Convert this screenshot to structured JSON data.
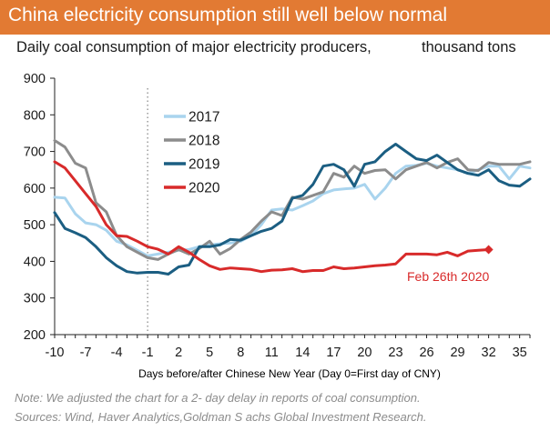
{
  "header": {
    "title": "China electricity consumption still well below normal",
    "subtitle": "Daily coal consumption of major electricity producers,",
    "units": "thousand tons"
  },
  "footer": {
    "note": "Note:  We adjusted the chart for a 2- day delay in reports of coal consumption.",
    "source": "Sources: Wind,  Haver Analytics,Goldman S achs Global Investment Research."
  },
  "colors": {
    "title_bar": "#e27a33",
    "s2017": "#a9d4ee",
    "s2018": "#8c8c8c",
    "s2019": "#1b5e82",
    "s2020": "#d82a2a",
    "cny_line": "#8c8c8c"
  },
  "chart_data": {
    "type": "line",
    "xlabel": "Days before/after Chinese New Year (Day 0=First day of CNY)",
    "ylabel": "",
    "xlim": [
      -10,
      36
    ],
    "ylim": [
      200,
      900
    ],
    "x_ticks": [
      -10,
      -7,
      -4,
      -1,
      2,
      5,
      8,
      11,
      14,
      17,
      20,
      23,
      26,
      29,
      32,
      35
    ],
    "y_ticks": [
      200,
      300,
      400,
      500,
      600,
      700,
      800,
      900
    ],
    "reference_line": {
      "x": -1,
      "style": "dotted"
    },
    "legend_position": "center",
    "annotation": {
      "text": "Feb 26th 2020",
      "x": 32,
      "y": 433
    },
    "series": [
      {
        "name": "2017",
        "color_key": "s2017",
        "x": [
          -10,
          -9,
          -8,
          -7,
          -6,
          -5,
          -4,
          -3,
          -2,
          -1,
          0,
          1,
          2,
          3,
          4,
          5,
          6,
          7,
          8,
          9,
          10,
          11,
          12,
          13,
          14,
          15,
          16,
          17,
          18,
          19,
          20,
          21,
          22,
          23,
          24,
          25,
          26,
          27,
          28,
          29,
          30,
          31,
          32,
          33,
          34,
          35,
          36
        ],
        "y": [
          575,
          573,
          530,
          505,
          500,
          485,
          455,
          445,
          430,
          415,
          420,
          425,
          430,
          432,
          440,
          445,
          448,
          450,
          455,
          470,
          500,
          540,
          543,
          540,
          552,
          565,
          585,
          595,
          598,
          600,
          610,
          570,
          600,
          640,
          660,
          662,
          668,
          660,
          655,
          650,
          640,
          650,
          660,
          660,
          625,
          660,
          655
        ]
      },
      {
        "name": "2018",
        "color_key": "s2018",
        "x": [
          -10,
          -9,
          -8,
          -7,
          -6,
          -5,
          -4,
          -3,
          -2,
          -1,
          0,
          1,
          2,
          3,
          4,
          5,
          6,
          7,
          8,
          9,
          10,
          11,
          12,
          13,
          14,
          15,
          16,
          17,
          18,
          19,
          20,
          21,
          22,
          23,
          24,
          25,
          26,
          27,
          28,
          29,
          30,
          31,
          32,
          33,
          34,
          35,
          36
        ],
        "y": [
          730,
          712,
          668,
          655,
          560,
          535,
          470,
          440,
          425,
          410,
          405,
          420,
          432,
          420,
          435,
          455,
          420,
          435,
          460,
          480,
          510,
          535,
          525,
          575,
          570,
          580,
          590,
          640,
          630,
          660,
          640,
          648,
          650,
          625,
          650,
          660,
          670,
          655,
          670,
          680,
          650,
          648,
          670,
          665,
          665,
          665,
          672
        ]
      },
      {
        "name": "2019",
        "color_key": "s2019",
        "x": [
          -10,
          -9,
          -8,
          -7,
          -6,
          -5,
          -4,
          -3,
          -2,
          -1,
          0,
          1,
          2,
          3,
          4,
          5,
          6,
          7,
          8,
          9,
          10,
          11,
          12,
          13,
          14,
          15,
          16,
          17,
          18,
          19,
          20,
          21,
          22,
          23,
          24,
          25,
          26,
          27,
          28,
          29,
          30,
          31,
          32,
          33,
          34,
          35,
          36
        ],
        "y": [
          533,
          490,
          478,
          465,
          440,
          410,
          388,
          372,
          368,
          370,
          370,
          365,
          385,
          390,
          440,
          440,
          445,
          460,
          458,
          470,
          482,
          490,
          510,
          572,
          580,
          610,
          660,
          665,
          650,
          605,
          665,
          672,
          700,
          720,
          700,
          680,
          675,
          690,
          670,
          650,
          640,
          635,
          650,
          620,
          608,
          605,
          625
        ]
      },
      {
        "name": "2020",
        "color_key": "s2020",
        "x": [
          -10,
          -9,
          -8,
          -7,
          -6,
          -5,
          -4,
          -3,
          -2,
          -1,
          0,
          1,
          2,
          3,
          4,
          5,
          6,
          7,
          8,
          9,
          10,
          11,
          12,
          13,
          14,
          15,
          16,
          17,
          18,
          19,
          20,
          21,
          22,
          23,
          24,
          25,
          26,
          27,
          28,
          29,
          30,
          31,
          32
        ],
        "y": [
          672,
          655,
          620,
          585,
          550,
          500,
          470,
          468,
          455,
          440,
          433,
          420,
          440,
          425,
          405,
          388,
          378,
          382,
          380,
          378,
          372,
          376,
          377,
          380,
          372,
          375,
          375,
          385,
          380,
          382,
          385,
          388,
          390,
          393,
          420,
          420,
          420,
          418,
          425,
          415,
          428,
          430,
          432
        ]
      }
    ]
  }
}
